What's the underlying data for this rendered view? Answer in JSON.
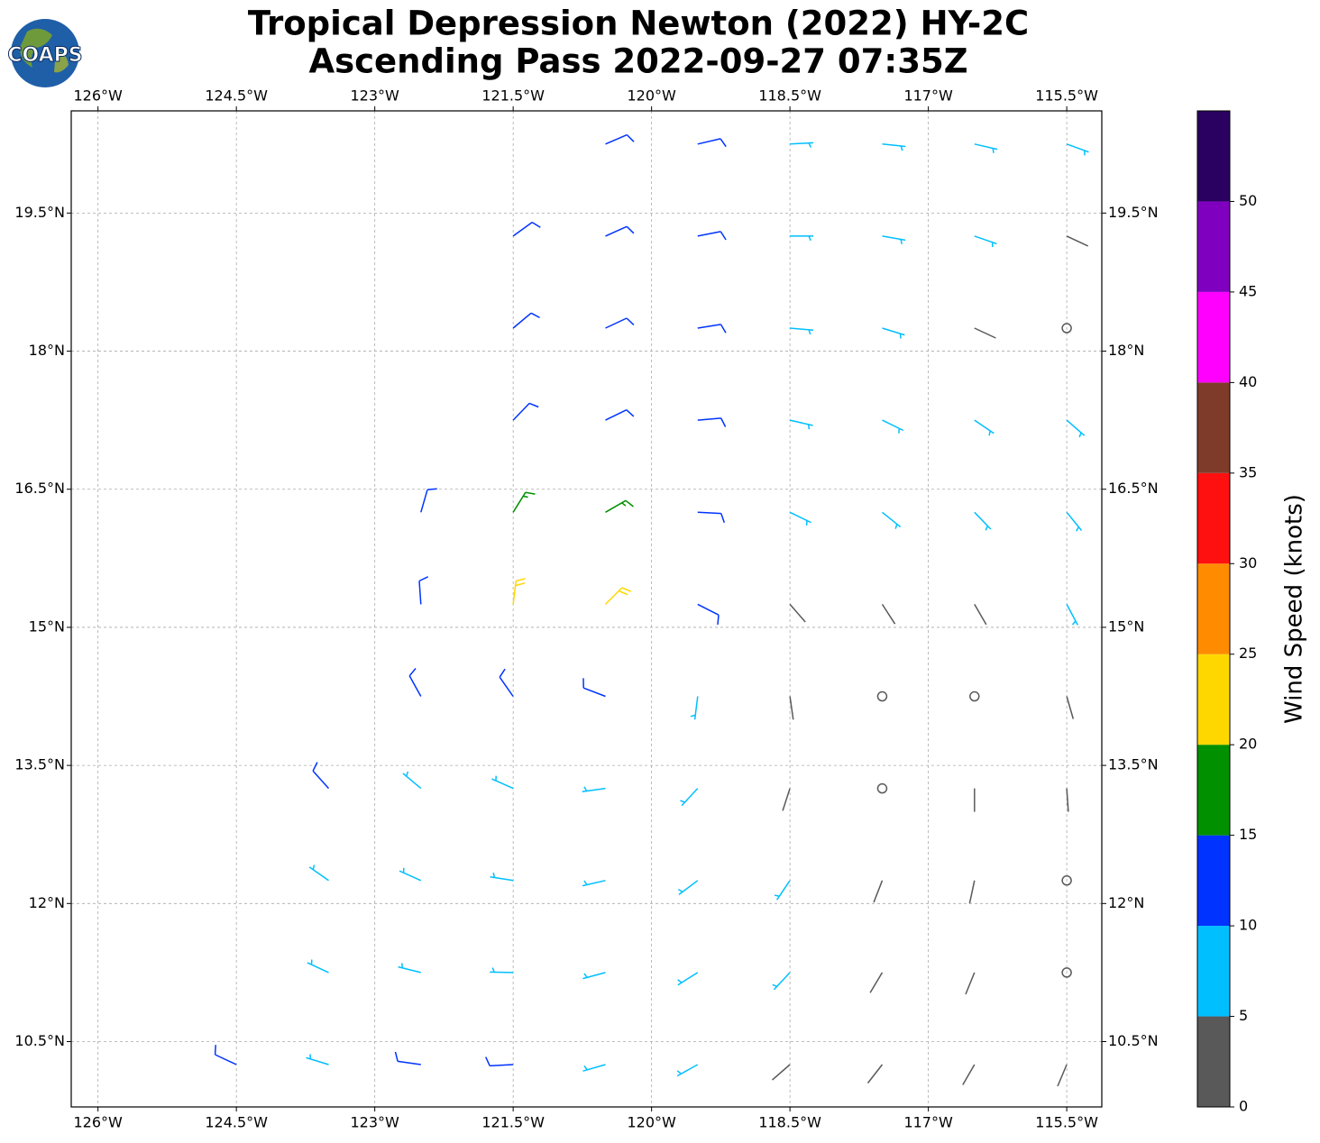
{
  "chart_data": {
    "type": "barbs",
    "title": "Tropical Depression Newton (2022) HY-2C",
    "subtitle": "Ascending Pass 2022-09-27 07:35Z",
    "logo_text": "COAPS",
    "xlim": [
      -126.29,
      -115.12
    ],
    "ylim": [
      9.79,
      20.61
    ],
    "xticks": [
      {
        "value": -126,
        "label": "126°W"
      },
      {
        "value": -124.5,
        "label": "124.5°W"
      },
      {
        "value": -123,
        "label": "123°W"
      },
      {
        "value": -121.5,
        "label": "121.5°W"
      },
      {
        "value": -120,
        "label": "120°W"
      },
      {
        "value": -118.5,
        "label": "118.5°W"
      },
      {
        "value": -117,
        "label": "117°W"
      },
      {
        "value": -115.5,
        "label": "115.5°W"
      }
    ],
    "yticks": [
      {
        "value": 10.5,
        "label": "10.5°N"
      },
      {
        "value": 12,
        "label": "12°N"
      },
      {
        "value": 13.5,
        "label": "13.5°N"
      },
      {
        "value": 15,
        "label": "15°N"
      },
      {
        "value": 16.5,
        "label": "16.5°N"
      },
      {
        "value": 18,
        "label": "18°N"
      },
      {
        "value": 19.5,
        "label": "19.5°N"
      }
    ],
    "grid": true,
    "colorbar": {
      "label": "Wind Speed (knots)",
      "bounds": [
        0,
        5,
        10,
        15,
        20,
        25,
        30,
        35,
        40,
        45,
        50,
        55
      ],
      "colors": [
        "#595959",
        "#00bfff",
        "#0033ff",
        "#009000",
        "#ffd700",
        "#ff8c00",
        "#ff1010",
        "#7f3b2a",
        "#ff00ff",
        "#8000c0",
        "#2a0060"
      ],
      "ticks": [
        0,
        5,
        10,
        15,
        20,
        25,
        30,
        35,
        40,
        45,
        50
      ]
    },
    "lon": [
      -124.5,
      -123.5,
      -122.5,
      -121.5,
      -120.5,
      -119.5,
      -118.5,
      -117.5,
      -116.5,
      -115.5,
      -123.5,
      -122.5,
      -121.5,
      -120.5,
      -119.5,
      -118.5,
      -117.5,
      -116.5,
      -115.5,
      -123.5,
      -122.5,
      -121.5,
      -120.5,
      -119.5,
      -118.5,
      -117.5,
      -116.5,
      -115.5,
      -123.5,
      -122.5,
      -121.5,
      -120.5,
      -119.5,
      -118.5,
      -117.5,
      -116.5,
      -115.5,
      -122.5,
      -121.5,
      -120.5,
      -119.5,
      -118.5,
      -117.5,
      -116.5,
      -115.5,
      -122.5,
      -121.5,
      -120.5,
      -119.5,
      -118.5,
      -117.5,
      -116.5,
      -115.5,
      -122.5,
      -121.5,
      -120.5,
      -119.5,
      -118.5,
      -117.5,
      -116.5,
      -115.5,
      -121.5,
      -120.5,
      -119.5,
      -118.5,
      -117.5,
      -116.5,
      -115.5,
      -121.5,
      -120.5,
      -119.5,
      -118.5,
      -117.5,
      -116.5,
      -115.5,
      -121.5,
      -120.5,
      -119.5,
      -118.5,
      -117.5,
      -116.5,
      -115.5,
      -120.5,
      -119.5,
      -118.5,
      -117.5,
      -116.5,
      -115.5
    ],
    "lat": [
      10.25,
      10.25,
      10.25,
      10.25,
      10.25,
      10.25,
      10.25,
      10.25,
      10.25,
      10.25,
      11.25,
      11.25,
      11.25,
      11.25,
      11.25,
      11.25,
      11.25,
      11.25,
      11.25,
      12.25,
      12.25,
      12.25,
      12.25,
      12.25,
      12.25,
      12.25,
      12.25,
      12.25,
      13.25,
      13.25,
      13.25,
      13.25,
      13.25,
      13.25,
      13.25,
      13.25,
      13.25,
      14.25,
      14.25,
      14.25,
      14.25,
      14.25,
      14.25,
      14.25,
      14.25,
      15.25,
      15.25,
      15.25,
      15.25,
      15.25,
      15.25,
      15.25,
      15.25,
      16.25,
      16.25,
      16.25,
      16.25,
      16.25,
      16.25,
      16.25,
      16.25,
      17.25,
      17.25,
      17.25,
      17.25,
      17.25,
      17.25,
      17.25,
      18.25,
      18.25,
      18.25,
      18.25,
      18.25,
      18.25,
      18.25,
      19.25,
      19.25,
      19.25,
      19.25,
      19.25,
      19.25,
      19.25,
      20.25,
      20.25,
      20.25,
      20.25,
      20.25,
      20.25
    ],
    "speed": [
      12,
      8,
      11,
      12,
      8,
      7,
      4,
      3,
      4,
      3,
      8,
      8,
      8,
      8,
      7,
      6,
      3,
      3,
      2,
      8,
      8,
      7,
      7,
      7,
      6,
      3,
      3,
      2,
      11,
      8,
      8,
      7,
      7,
      3,
      2,
      3,
      4,
      12,
      10,
      11,
      8,
      3,
      2,
      2,
      3,
      13,
      22,
      21,
      12,
      4,
      3,
      4,
      6,
      13,
      18,
      16,
      12,
      9,
      8,
      7,
      7,
      13,
      12,
      11,
      8,
      8,
      6,
      6,
      13,
      12,
      10,
      8,
      7,
      4,
      2,
      12,
      11,
      10,
      8,
      7,
      6,
      3,
      11,
      10,
      8,
      7,
      7,
      6
    ],
    "direction": [
      295,
      287,
      278,
      267,
      254,
      241,
      229,
      218,
      210,
      203,
      295,
      284,
      271,
      255,
      238,
      223,
      211,
      202,
      196,
      305,
      294,
      279,
      257,
      233,
      214,
      201,
      192,
      187,
      318,
      310,
      294,
      262,
      223,
      198,
      187,
      180,
      176,
      331,
      325,
      291,
      187,
      172,
      167,
      165,
      164,
      356,
      7,
      45,
      117,
      139,
      147,
      150,
      152,
      16,
      32,
      60,
      93,
      116,
      129,
      136,
      141,
      44,
      64,
      85,
      103,
      116,
      124,
      131,
      50,
      65,
      81,
      95,
      107,
      115,
      122,
      54,
      66,
      79,
      90,
      100,
      109,
      115,
      67,
      77,
      87,
      96,
      103,
      110
    ]
  }
}
